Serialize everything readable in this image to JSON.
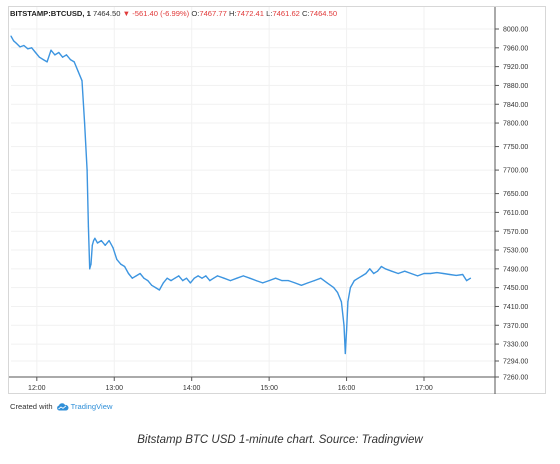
{
  "header": {
    "symbol": "BITSTAMP:BTCUSD, 1",
    "price": "7464.50",
    "arrow": "▼",
    "change": "-561.40 (-6.99%)",
    "o_label": "O:",
    "o_value": "7467.77",
    "h_label": "H:",
    "h_value": "7472.41",
    "l_label": "L:",
    "l_value": "7461.62",
    "c_label": "C:",
    "c_value": "7464.50"
  },
  "attribution": {
    "prefix": "Created with",
    "brand": "TradingView"
  },
  "caption": "Bitstamp BTC USD 1-minute chart. Source: Tradingview",
  "colors": {
    "line": "#3d95e0",
    "grid": "#f1f1f1",
    "axis_text": "#333333",
    "down": "#e03a3a"
  },
  "chart_data": {
    "type": "line",
    "series": [
      {
        "x": [
          "11:40",
          "11:42",
          "11:44",
          "11:47",
          "11:50",
          "11:53",
          "11:56",
          "11:59",
          "12:02",
          "12:05",
          "12:08",
          "12:11",
          "12:14",
          "12:17",
          "12:20",
          "12:23",
          "12:26",
          "12:29",
          "12:32",
          "12:35",
          "12:37",
          "12:39",
          "12:40",
          "12:41",
          "12:42",
          "12:43",
          "12:44",
          "12:45",
          "12:47",
          "12:50",
          "12:53",
          "12:56",
          "12:59",
          "13:02",
          "13:05",
          "13:08",
          "13:11",
          "13:14",
          "13:17",
          "13:20",
          "13:23",
          "13:26",
          "13:29",
          "13:32",
          "13:35",
          "13:38",
          "13:41",
          "13:44",
          "13:47",
          "13:50",
          "13:53",
          "13:56",
          "13:59",
          "14:02",
          "14:05",
          "14:08",
          "14:11",
          "14:14",
          "14:17",
          "14:20",
          "14:25",
          "14:30",
          "14:35",
          "14:40",
          "14:45",
          "14:50",
          "14:55",
          "15:00",
          "15:05",
          "15:10",
          "15:15",
          "15:20",
          "15:25",
          "15:30",
          "15:35",
          "15:40",
          "15:45",
          "15:50",
          "15:53",
          "15:56",
          "15:58",
          "15:59",
          "16:00",
          "16:01",
          "16:03",
          "16:06",
          "16:09",
          "16:12",
          "16:15",
          "16:18",
          "16:21",
          "16:24",
          "16:27",
          "16:30",
          "16:35",
          "16:40",
          "16:45",
          "16:50",
          "16:55",
          "17:00",
          "17:05",
          "17:10",
          "17:15",
          "17:20",
          "17:25",
          "17:30",
          "17:33",
          "17:36"
        ],
        "y": [
          7985,
          7975,
          7970,
          7962,
          7965,
          7958,
          7960,
          7950,
          7940,
          7935,
          7930,
          7955,
          7945,
          7950,
          7940,
          7945,
          7935,
          7930,
          7910,
          7890,
          7800,
          7700,
          7580,
          7490,
          7500,
          7540,
          7550,
          7555,
          7545,
          7550,
          7540,
          7550,
          7535,
          7510,
          7500,
          7495,
          7480,
          7470,
          7475,
          7480,
          7470,
          7465,
          7455,
          7450,
          7445,
          7460,
          7470,
          7465,
          7470,
          7475,
          7465,
          7470,
          7460,
          7470,
          7475,
          7470,
          7475,
          7465,
          7470,
          7475,
          7470,
          7465,
          7470,
          7475,
          7470,
          7465,
          7460,
          7465,
          7470,
          7465,
          7465,
          7460,
          7455,
          7460,
          7465,
          7470,
          7460,
          7450,
          7440,
          7420,
          7370,
          7310,
          7360,
          7420,
          7450,
          7465,
          7470,
          7475,
          7480,
          7490,
          7480,
          7485,
          7495,
          7490,
          7485,
          7480,
          7485,
          7480,
          7475,
          7480,
          7480,
          7482,
          7480,
          7478,
          7476,
          7478,
          7465,
          7470
        ]
      }
    ],
    "yticks": [
      "8000.00",
      "7960.00",
      "7920.00",
      "7880.00",
      "7840.00",
      "7800.00",
      "7750.00",
      "7700.00",
      "7650.00",
      "7610.00",
      "7570.00",
      "7530.00",
      "7490.00",
      "7450.00",
      "7410.00",
      "7370.00",
      "7330.00",
      "7294.00",
      "7260.00"
    ],
    "xticks": [
      "12:00",
      "13:00",
      "14:00",
      "15:00",
      "16:00",
      "17:00"
    ],
    "ylim": [
      7260,
      8000
    ],
    "xlim": [
      "11:40",
      "17:55"
    ],
    "grid": true,
    "axis_position": "right"
  }
}
